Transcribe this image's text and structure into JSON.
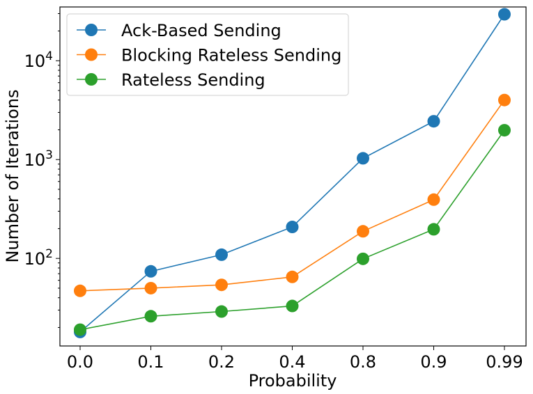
{
  "chart_data": {
    "type": "line",
    "categories": [
      "0.0",
      "0.1",
      "0.2",
      "0.4",
      "0.8",
      "0.9",
      "0.99"
    ],
    "xlabel": "Probability",
    "ylabel": "Number of Iterations",
    "yscale": "log",
    "ylim": [
      13,
      35000
    ],
    "y_ticks": [
      {
        "exp": "2",
        "value": 100
      },
      {
        "exp": "3",
        "value": 1000
      },
      {
        "exp": "4",
        "value": 10000
      }
    ],
    "y_tick_base": "10",
    "grid": false,
    "legend_position": "top-left",
    "series": [
      {
        "name": "Ack-Based Sending",
        "color": "#1f77b4",
        "values": [
          18,
          74,
          109,
          208,
          1030,
          2440,
          29500
        ]
      },
      {
        "name": "Blocking Rateless Sending",
        "color": "#ff7f0e",
        "values": [
          47,
          50,
          54,
          65,
          188,
          393,
          4000
        ]
      },
      {
        "name": "Rateless Sending",
        "color": "#2ca02c",
        "values": [
          19,
          26,
          29,
          33,
          99,
          197,
          1980
        ]
      }
    ]
  }
}
